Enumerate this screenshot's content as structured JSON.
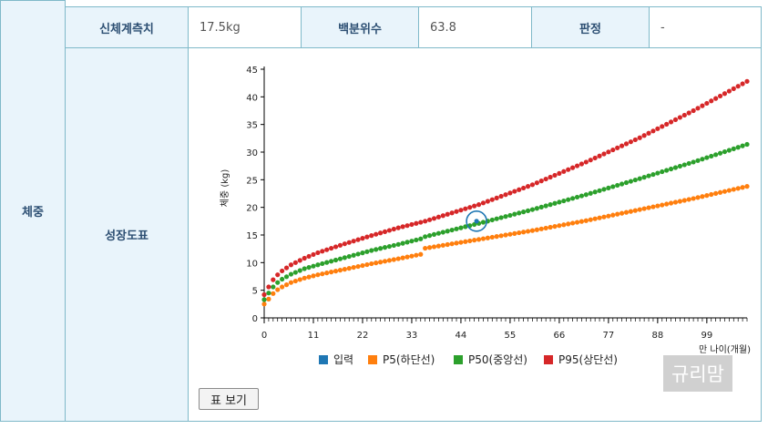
{
  "table": {
    "row_header": "체중",
    "measurement_label": "신체계측치",
    "measurement_value": "17.5kg",
    "percentile_label": "백분위수",
    "percentile_value": "63.8",
    "judgement_label": "판정",
    "judgement_value": "-",
    "chart_label": "성장도표"
  },
  "button": {
    "table_view_label": "표 보기"
  },
  "watermark": "규리맘",
  "colors": {
    "input": "#1f77b4",
    "p5": "#ff7f0e",
    "p50": "#2ca02c",
    "p95": "#d62728",
    "border": "#7fb9c9",
    "header_bg": "#e9f4fb"
  },
  "chart_data": {
    "type": "scatter",
    "ylabel": "체중 (kg)",
    "xlabel": "만 나이(개월)",
    "xlim": [
      0,
      108
    ],
    "ylim": [
      0,
      45
    ],
    "xticks": [
      0,
      11,
      22,
      33,
      44,
      55,
      66,
      77,
      88,
      99
    ],
    "yticks": [
      0,
      5,
      10,
      15,
      20,
      25,
      30,
      35,
      40,
      45
    ],
    "legend_position": "bottom",
    "input_point": {
      "name": "입력",
      "x": 47.5,
      "y": 17.5
    },
    "series": [
      {
        "name": "P5(하단선)",
        "key": "p5",
        "x": [
          0,
          1,
          2,
          3,
          4,
          6,
          9,
          12,
          18,
          24,
          30,
          35,
          36,
          48,
          60,
          72,
          84,
          96,
          108
        ],
        "values": [
          2.5,
          3.4,
          4.4,
          5.1,
          5.6,
          6.4,
          7.2,
          7.8,
          8.8,
          9.8,
          10.7,
          11.5,
          12.6,
          14.2,
          15.8,
          17.6,
          19.6,
          21.6,
          23.8
        ]
      },
      {
        "name": "P50(중앙선)",
        "key": "p50",
        "x": [
          0,
          1,
          2,
          3,
          4,
          6,
          9,
          12,
          18,
          24,
          30,
          35,
          36,
          48,
          60,
          72,
          84,
          96,
          108
        ],
        "values": [
          3.3,
          4.5,
          5.6,
          6.4,
          7.0,
          7.9,
          8.9,
          9.6,
          10.9,
          12.2,
          13.3,
          14.3,
          14.7,
          17.1,
          19.6,
          22.3,
          25.2,
          28.2,
          31.4
        ]
      },
      {
        "name": "P95(상단선)",
        "key": "p95",
        "x": [
          0,
          1,
          2,
          3,
          4,
          6,
          9,
          12,
          18,
          24,
          30,
          36,
          48,
          60,
          72,
          84,
          96,
          108
        ],
        "values": [
          4.2,
          5.6,
          6.9,
          7.8,
          8.5,
          9.6,
          10.8,
          11.8,
          13.4,
          14.9,
          16.3,
          17.5,
          20.5,
          24.1,
          28.2,
          32.6,
          37.5,
          42.8
        ]
      }
    ]
  }
}
